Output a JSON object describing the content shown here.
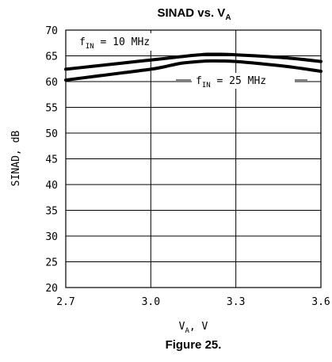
{
  "chart_data": {
    "type": "line",
    "title_main": "SINAD vs. V",
    "title_sub": "A",
    "xlabel_main": "V",
    "xlabel_sub": "A",
    "xlabel_unit": ", V",
    "ylabel": "SINAD, dB",
    "xlim": [
      2.7,
      3.6
    ],
    "ylim": [
      20,
      70
    ],
    "x_ticks": [
      2.7,
      3.0,
      3.3,
      3.6
    ],
    "x_tick_labels": [
      "2.7",
      "3.0",
      "3.3",
      "3.6"
    ],
    "y_ticks": [
      20,
      25,
      30,
      35,
      40,
      45,
      50,
      55,
      60,
      65,
      70
    ],
    "y_tick_labels": [
      "20",
      "25",
      "30",
      "35",
      "40",
      "45",
      "50",
      "55",
      "60",
      "65",
      "70"
    ],
    "grid": true,
    "series": [
      {
        "name_main": "f",
        "name_sub": "IN",
        "name_value": " = 10 MHz",
        "x": [
          2.7,
          2.8,
          2.9,
          3.0,
          3.1,
          3.15,
          3.2,
          3.25,
          3.3,
          3.4,
          3.5,
          3.6
        ],
        "y": [
          62.4,
          63.0,
          63.6,
          64.2,
          64.8,
          65.1,
          65.3,
          65.3,
          65.2,
          64.9,
          64.5,
          63.9
        ]
      },
      {
        "name_main": "f",
        "name_sub": "IN",
        "name_value": " = 25 MHz",
        "x": [
          2.7,
          2.8,
          2.9,
          3.0,
          3.05,
          3.1,
          3.15,
          3.2,
          3.25,
          3.3,
          3.4,
          3.5,
          3.6
        ],
        "y": [
          60.3,
          61.0,
          61.7,
          62.4,
          62.9,
          63.5,
          63.8,
          64.0,
          64.0,
          63.9,
          63.4,
          62.8,
          62.0
        ]
      }
    ]
  },
  "caption": "Figure 25."
}
